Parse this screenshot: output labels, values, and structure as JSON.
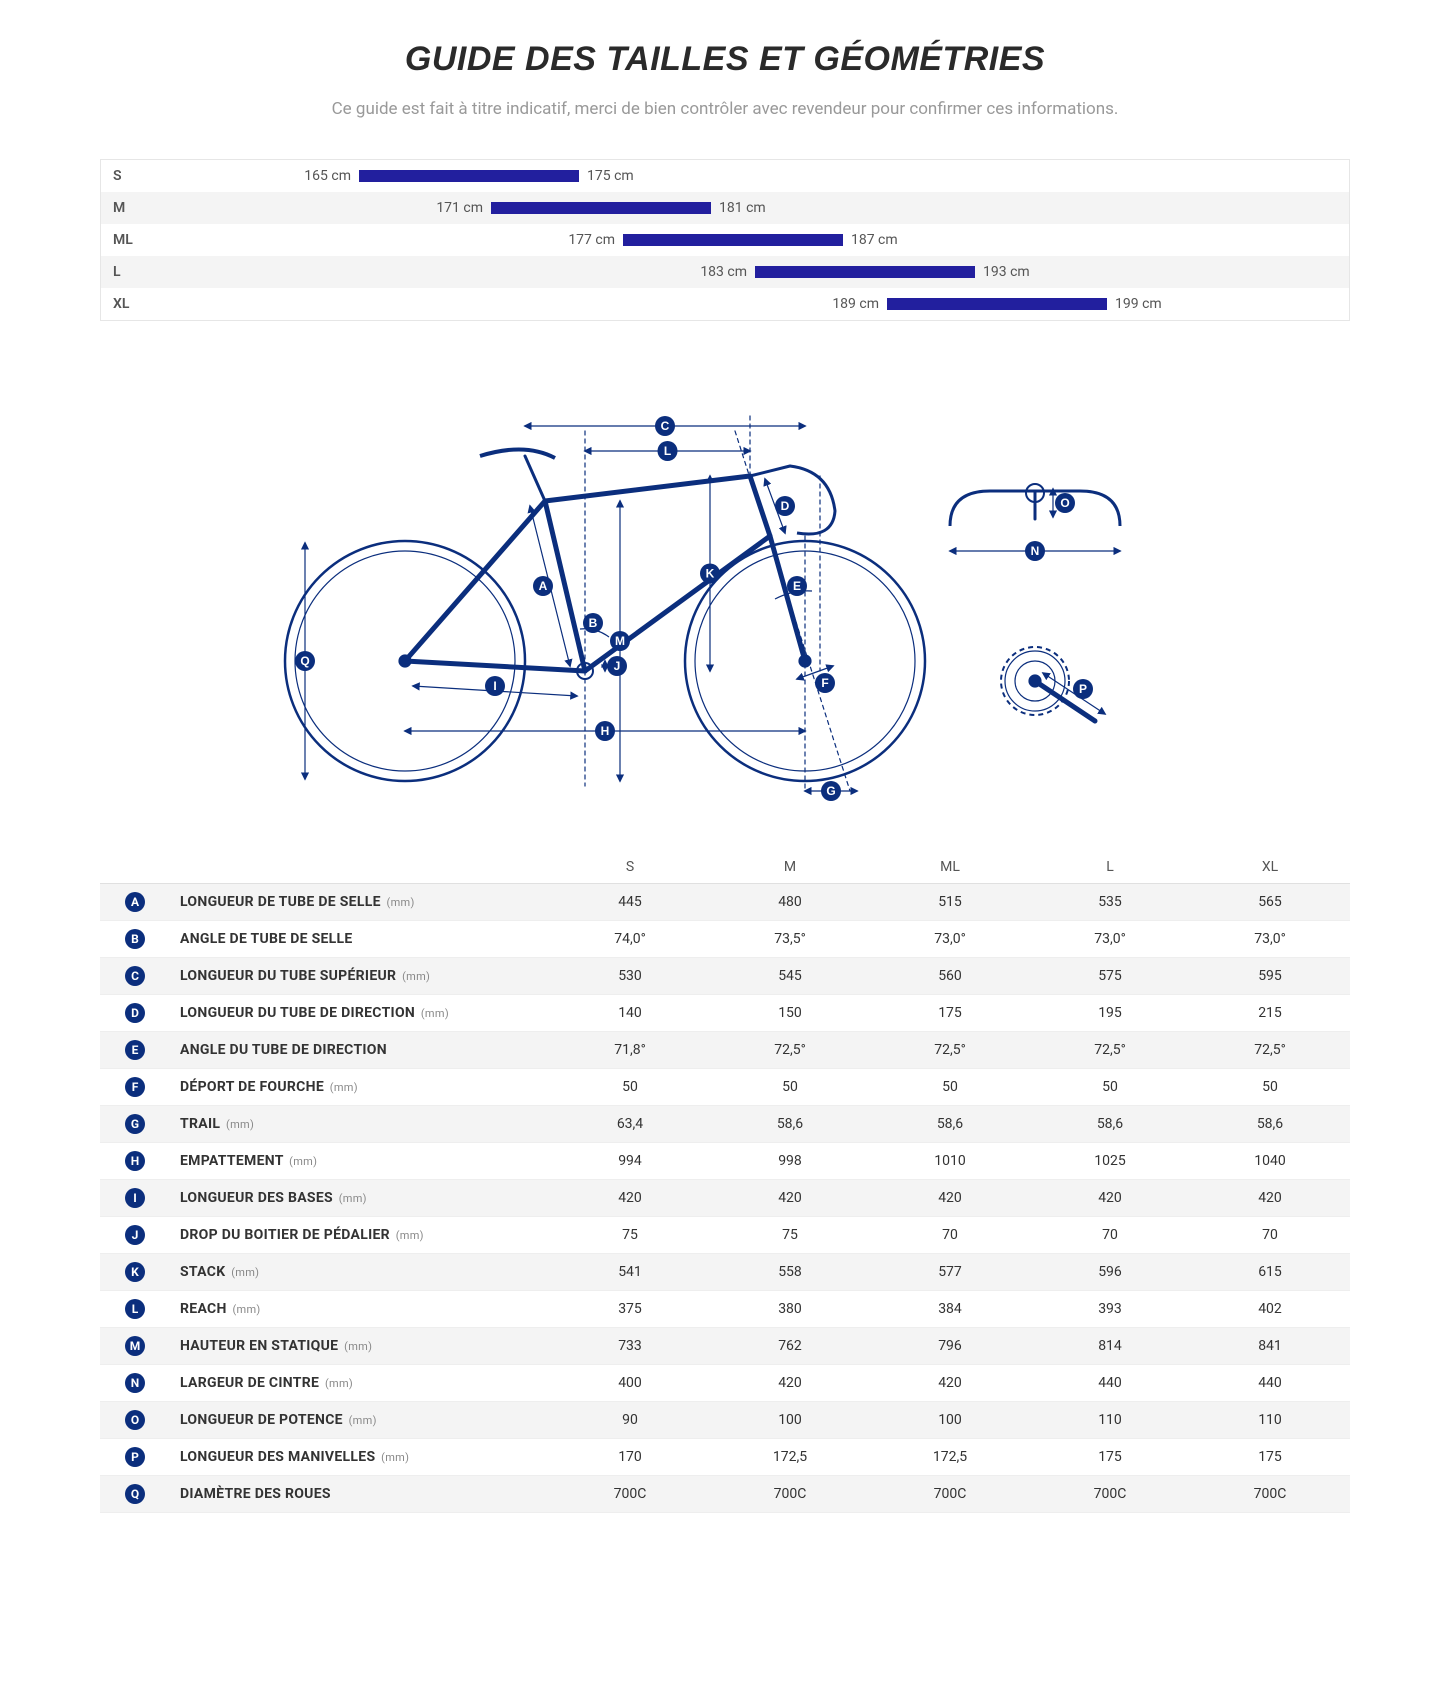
{
  "title": "GUIDE DES TAILLES ET GÉOMÉTRIES",
  "subtitle": "Ce guide est fait à titre indicatif, merci de bien contrôler avec revendeur pour confirmer ces informations.",
  "colors": {
    "brand_blue": "#0b2e7d",
    "bar_blue": "#221f9e",
    "row_alt_bg": "#f4f4f4",
    "border": "#e6e6e6",
    "text": "#333333",
    "muted": "#999999"
  },
  "size_chart": {
    "domain_min": 156,
    "domain_max": 210,
    "unit": "cm",
    "bar_color": "#221f9e",
    "sizes": [
      {
        "label": "S",
        "min": 165,
        "max": 175
      },
      {
        "label": "M",
        "min": 171,
        "max": 181
      },
      {
        "label": "ML",
        "min": 177,
        "max": 187
      },
      {
        "label": "L",
        "min": 183,
        "max": 193
      },
      {
        "label": "XL",
        "min": 189,
        "max": 199
      }
    ]
  },
  "diagram": {
    "stroke": "#0b2e7d",
    "labels": [
      "A",
      "B",
      "C",
      "D",
      "E",
      "F",
      "G",
      "H",
      "I",
      "J",
      "K",
      "L",
      "M",
      "N",
      "O",
      "P",
      "Q"
    ]
  },
  "geometry": {
    "columns": [
      "S",
      "M",
      "ML",
      "L",
      "XL"
    ],
    "rows": [
      {
        "letter": "A",
        "spec": "LONGUEUR DE TUBE DE SELLE",
        "unit": "(mm)",
        "values": [
          "445",
          "480",
          "515",
          "535",
          "565"
        ]
      },
      {
        "letter": "B",
        "spec": "ANGLE DE TUBE DE SELLE",
        "unit": "",
        "values": [
          "74,0°",
          "73,5°",
          "73,0°",
          "73,0°",
          "73,0°"
        ]
      },
      {
        "letter": "C",
        "spec": "LONGUEUR DU TUBE SUPÉRIEUR",
        "unit": "(mm)",
        "values": [
          "530",
          "545",
          "560",
          "575",
          "595"
        ]
      },
      {
        "letter": "D",
        "spec": "LONGUEUR DU TUBE DE DIRECTION",
        "unit": "(mm)",
        "values": [
          "140",
          "150",
          "175",
          "195",
          "215"
        ]
      },
      {
        "letter": "E",
        "spec": "ANGLE DU TUBE DE DIRECTION",
        "unit": "",
        "values": [
          "71,8°",
          "72,5°",
          "72,5°",
          "72,5°",
          "72,5°"
        ]
      },
      {
        "letter": "F",
        "spec": "DÉPORT DE FOURCHE",
        "unit": "(mm)",
        "values": [
          "50",
          "50",
          "50",
          "50",
          "50"
        ]
      },
      {
        "letter": "G",
        "spec": "TRAIL",
        "unit": "(mm)",
        "values": [
          "63,4",
          "58,6",
          "58,6",
          "58,6",
          "58,6"
        ]
      },
      {
        "letter": "H",
        "spec": "EMPATTEMENT",
        "unit": "(mm)",
        "values": [
          "994",
          "998",
          "1010",
          "1025",
          "1040"
        ]
      },
      {
        "letter": "I",
        "spec": "LONGUEUR DES BASES",
        "unit": "(mm)",
        "values": [
          "420",
          "420",
          "420",
          "420",
          "420"
        ]
      },
      {
        "letter": "J",
        "spec": "DROP DU BOITIER DE PÉDALIER",
        "unit": "(mm)",
        "values": [
          "75",
          "75",
          "70",
          "70",
          "70"
        ]
      },
      {
        "letter": "K",
        "spec": "STACK",
        "unit": "(mm)",
        "values": [
          "541",
          "558",
          "577",
          "596",
          "615"
        ]
      },
      {
        "letter": "L",
        "spec": "REACH",
        "unit": "(mm)",
        "values": [
          "375",
          "380",
          "384",
          "393",
          "402"
        ]
      },
      {
        "letter": "M",
        "spec": "HAUTEUR EN STATIQUE",
        "unit": "(mm)",
        "values": [
          "733",
          "762",
          "796",
          "814",
          "841"
        ]
      },
      {
        "letter": "N",
        "spec": "LARGEUR DE CINTRE",
        "unit": "(mm)",
        "values": [
          "400",
          "420",
          "420",
          "440",
          "440"
        ]
      },
      {
        "letter": "O",
        "spec": "LONGUEUR DE POTENCE",
        "unit": "(mm)",
        "values": [
          "90",
          "100",
          "100",
          "110",
          "110"
        ]
      },
      {
        "letter": "P",
        "spec": "LONGUEUR DES MANIVELLES",
        "unit": "(mm)",
        "values": [
          "170",
          "172,5",
          "172,5",
          "175",
          "175"
        ]
      },
      {
        "letter": "Q",
        "spec": "DIAMÈTRE DES ROUES",
        "unit": "",
        "values": [
          "700C",
          "700C",
          "700C",
          "700C",
          "700C"
        ]
      }
    ]
  }
}
